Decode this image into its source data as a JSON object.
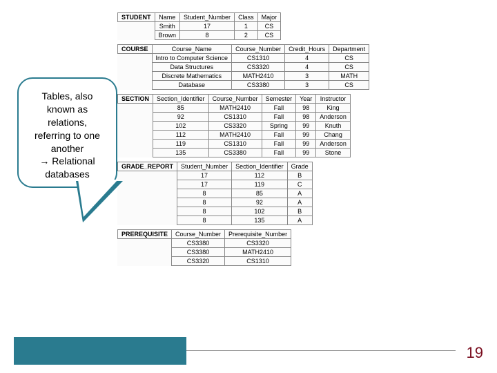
{
  "callout": {
    "line1": "Tables, also",
    "line2": "known as",
    "line3": "relations,",
    "line4": "referring to one",
    "line5": "another",
    "line6": "→ Relational",
    "line7": "databases"
  },
  "page_number": "19",
  "colors": {
    "accent": "#2a7b8f",
    "page_num": "#7a0e1f",
    "table_border": "#888888"
  },
  "tables": {
    "student": {
      "name": "STUDENT",
      "headers": [
        "Name",
        "Student_Number",
        "Class",
        "Major"
      ],
      "rows": [
        [
          "Smith",
          "17",
          "1",
          "CS"
        ],
        [
          "Brown",
          "8",
          "2",
          "CS"
        ]
      ]
    },
    "course": {
      "name": "COURSE",
      "headers": [
        "Course_Name",
        "Course_Number",
        "Credit_Hours",
        "Department"
      ],
      "rows": [
        [
          "Intro to Computer Science",
          "CS1310",
          "4",
          "CS"
        ],
        [
          "Data Structures",
          "CS3320",
          "4",
          "CS"
        ],
        [
          "Discrete Mathematics",
          "MATH2410",
          "3",
          "MATH"
        ],
        [
          "Database",
          "CS3380",
          "3",
          "CS"
        ]
      ]
    },
    "section": {
      "name": "SECTION",
      "headers": [
        "Section_Identifier",
        "Course_Number",
        "Semester",
        "Year",
        "Instructor"
      ],
      "rows": [
        [
          "85",
          "MATH2410",
          "Fall",
          "98",
          "King"
        ],
        [
          "92",
          "CS1310",
          "Fall",
          "98",
          "Anderson"
        ],
        [
          "102",
          "CS3320",
          "Spring",
          "99",
          "Knuth"
        ],
        [
          "112",
          "MATH2410",
          "Fall",
          "99",
          "Chang"
        ],
        [
          "119",
          "CS1310",
          "Fall",
          "99",
          "Anderson"
        ],
        [
          "135",
          "CS3380",
          "Fall",
          "99",
          "Stone"
        ]
      ]
    },
    "grade_report": {
      "name": "GRADE_REPORT",
      "headers": [
        "Student_Number",
        "Section_Identifier",
        "Grade"
      ],
      "rows": [
        [
          "17",
          "112",
          "B"
        ],
        [
          "17",
          "119",
          "C"
        ],
        [
          "8",
          "85",
          "A"
        ],
        [
          "8",
          "92",
          "A"
        ],
        [
          "8",
          "102",
          "B"
        ],
        [
          "8",
          "135",
          "A"
        ]
      ]
    },
    "prerequisite": {
      "name": "PREREQUISITE",
      "headers": [
        "Course_Number",
        "Prerequisite_Number"
      ],
      "rows": [
        [
          "CS3380",
          "CS3320"
        ],
        [
          "CS3380",
          "MATH2410"
        ],
        [
          "CS3320",
          "CS1310"
        ]
      ]
    }
  }
}
